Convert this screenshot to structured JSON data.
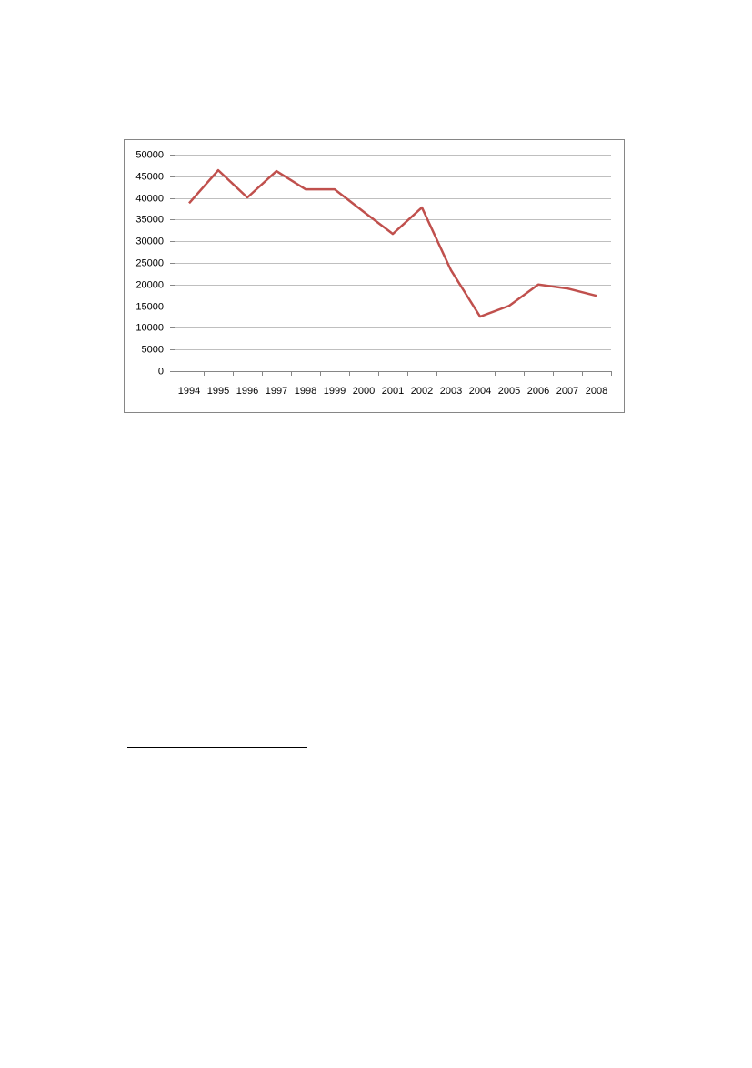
{
  "chart_data": {
    "type": "line",
    "categories": [
      "1994",
      "1995",
      "1996",
      "1997",
      "1998",
      "1999",
      "2000",
      "2001",
      "2002",
      "2003",
      "2004",
      "2005",
      "2006",
      "2007",
      "2008"
    ],
    "series": [
      {
        "color": "#c0504d",
        "values": [
          38800,
          46400,
          40100,
          46200,
          42000,
          42000,
          36800,
          31700,
          37800,
          23300,
          12600,
          15100,
          20000,
          19100,
          17400
        ]
      }
    ],
    "ylim": [
      0,
      50000
    ],
    "yticks": [
      0,
      5000,
      10000,
      15000,
      20000,
      25000,
      30000,
      35000,
      40000,
      45000,
      50000
    ],
    "grid": true
  }
}
